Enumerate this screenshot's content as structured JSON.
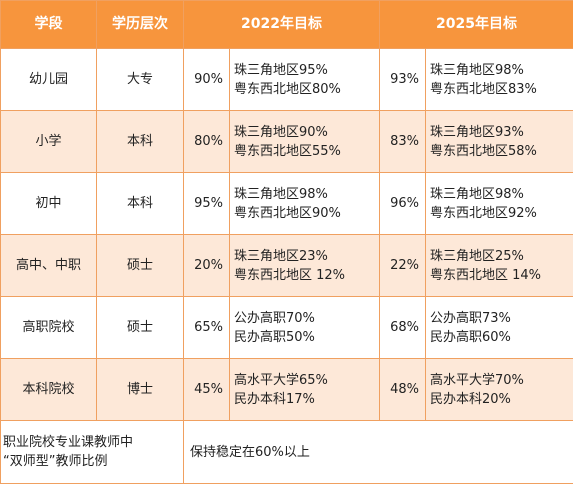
{
  "headers": [
    "学段",
    "学历层次",
    "2022年目标",
    "2025年目标"
  ],
  "rows": [
    {
      "stage": "幼儿园",
      "degree": "大专",
      "p2022": "90%",
      "d2022": [
        "珠三角地区95%",
        "粤东西北地区80%"
      ],
      "p2025": "93%",
      "d2025": [
        "珠三角地区98%",
        "粤东西北地区83%"
      ]
    },
    {
      "stage": "小学",
      "degree": "本科",
      "p2022": "80%",
      "d2022": [
        "珠三角地区90%",
        "粤东西北地区55%"
      ],
      "p2025": "83%",
      "d2025": [
        "珠三角地区93%",
        "粤东西北地区58%"
      ]
    },
    {
      "stage": "初中",
      "degree": "本科",
      "p2022": "95%",
      "d2022": [
        "珠三角地区98%",
        "粤东西北地区90%"
      ],
      "p2025": "96%",
      "d2025": [
        "珠三角地区98%",
        "粤东西北地区92%"
      ]
    },
    {
      "stage": "高中、中职",
      "degree": "硕士",
      "p2022": "20%",
      "d2022": [
        "珠三角地区23%",
        "粤东西北地区  12%"
      ],
      "p2025": "22%",
      "d2025": [
        "珠三角地区25%",
        "粤东西北地区  14%"
      ]
    },
    {
      "stage": "高职院校",
      "degree": "硕士",
      "p2022": "65%",
      "d2022": [
        "公办高职70%",
        "民办高职50%"
      ],
      "p2025": "68%",
      "d2025": [
        "公办高职73%",
        "民办高职60%"
      ]
    },
    {
      "stage": "本科院校",
      "degree": "博士",
      "p2022": "45%",
      "d2022": [
        "高水平大学65%",
        "民办本科17%"
      ],
      "p2025": "48%",
      "d2025": [
        "高水平大学70%",
        "民办本科20%"
      ]
    }
  ],
  "footer": {
    "label": [
      "职业院校专业课教师中",
      "“双师型”教师比例"
    ],
    "value": "保持稳定在60%以上"
  }
}
